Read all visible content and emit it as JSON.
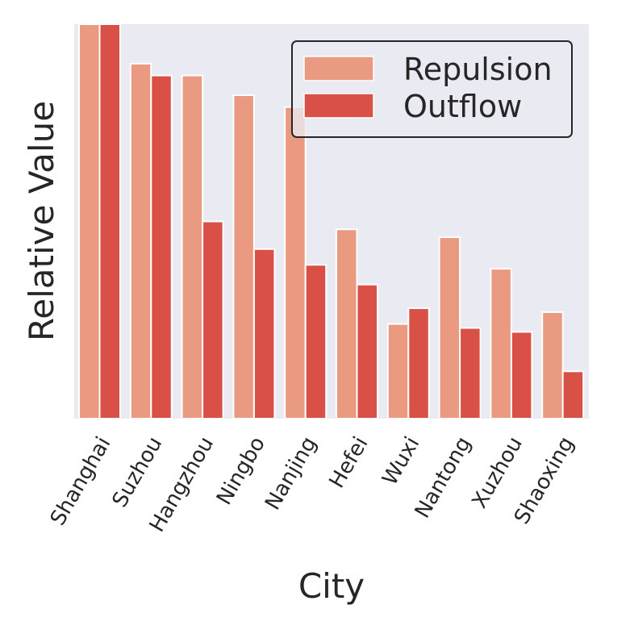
{
  "chart_data": {
    "type": "bar",
    "title": "",
    "xlabel": "City",
    "ylabel": "Relative Value",
    "categories": [
      "Shanghai",
      "Suzhou",
      "Hangzhou",
      "Ningbo",
      "Nanjing",
      "Hefei",
      "Wuxi",
      "Nantong",
      "Xuzhou",
      "Shaoxing"
    ],
    "series": [
      {
        "name": "Repulsion",
        "color": "#ea9a80",
        "values": [
          1.0,
          0.9,
          0.87,
          0.82,
          0.79,
          0.48,
          0.24,
          0.46,
          0.38,
          0.27
        ]
      },
      {
        "name": "Outflow",
        "color": "#d95146",
        "values": [
          1.0,
          0.87,
          0.5,
          0.43,
          0.39,
          0.34,
          0.28,
          0.23,
          0.22,
          0.12
        ]
      }
    ],
    "ylim": [
      0,
      1.0
    ],
    "y_ticks_shown": false,
    "grid": false,
    "background": "#eaeaf2",
    "legend_position": "top-right"
  }
}
